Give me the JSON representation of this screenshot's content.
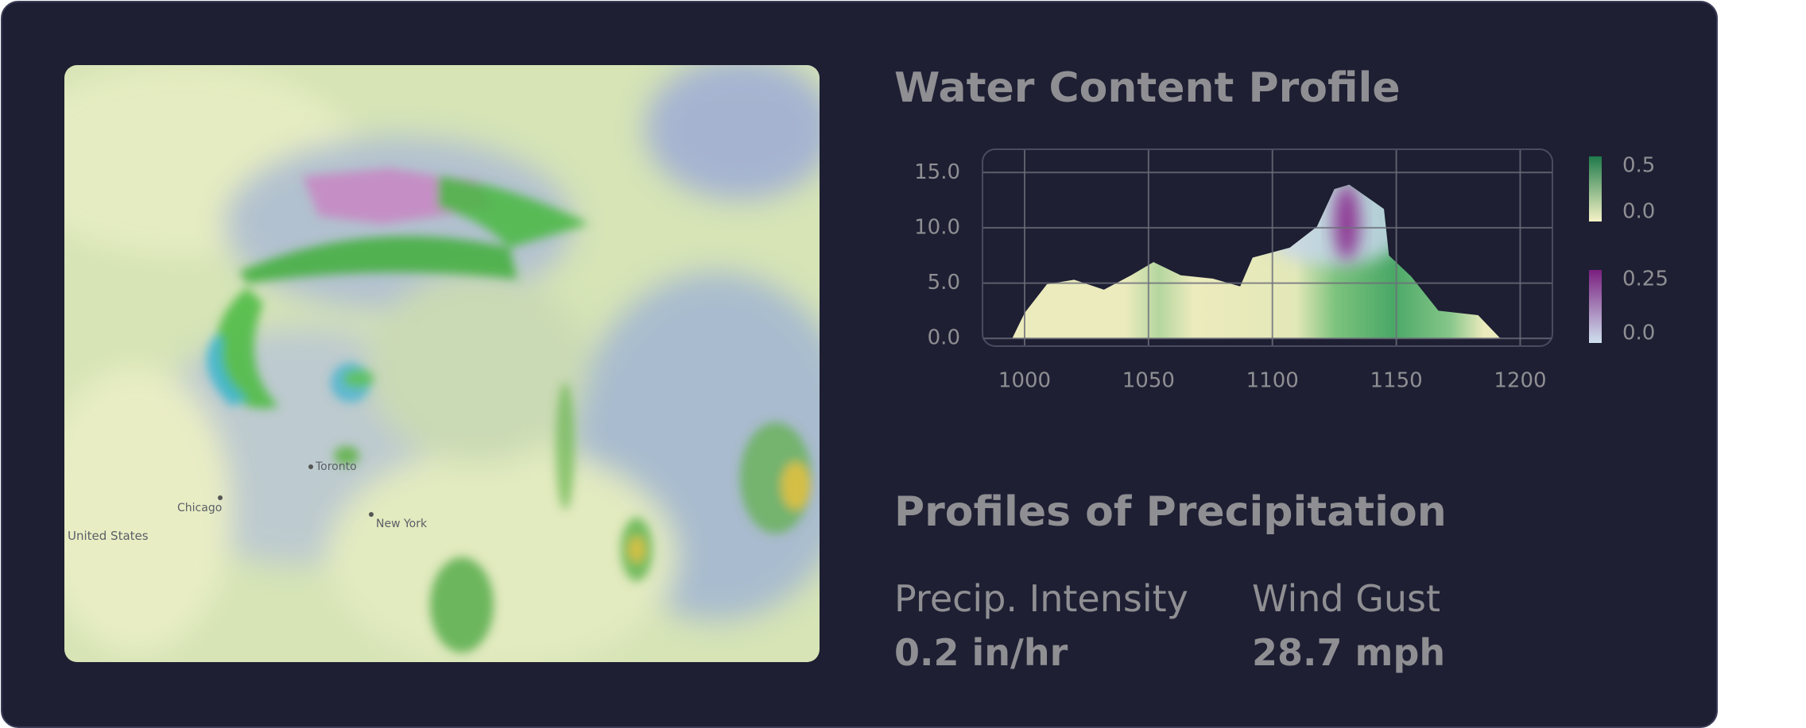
{
  "map": {
    "labels": [
      "Toronto",
      "Chicago",
      "New York",
      "United States"
    ]
  },
  "chart_data": {
    "type": "area",
    "title": "Water Content Profile",
    "x": [
      995,
      1000,
      1009,
      1020,
      1032,
      1043,
      1052,
      1063,
      1076,
      1087,
      1092,
      1107,
      1118,
      1125,
      1131,
      1145,
      1147,
      1156,
      1167,
      1183,
      1192
    ],
    "values": [
      0,
      2.3,
      4.9,
      5.3,
      4.4,
      5.7,
      6.9,
      5.7,
      5.4,
      4.7,
      7.3,
      8.2,
      10.1,
      13.5,
      13.9,
      11.7,
      7.5,
      5.6,
      2.5,
      2.1,
      0
    ],
    "xlim": [
      983,
      1213
    ],
    "xticks": [
      1000,
      1050,
      1100,
      1150,
      1200
    ],
    "ylim": [
      -0.7,
      17.1
    ],
    "yticks": [
      {
        "value": 0,
        "label": "0.0"
      },
      {
        "value": 5,
        "label": "5.0"
      },
      {
        "value": 10,
        "label": "10.0"
      },
      {
        "value": 15,
        "label": "15.0"
      }
    ],
    "grid": true,
    "colorbars": [
      {
        "colors": [
          "#f5f3c6",
          "#1f7a4a"
        ],
        "lim": [
          0,
          0.5
        ],
        "ticks": [
          {
            "value": 0,
            "label": "0.0"
          },
          0.5
        ]
      },
      {
        "colors": [
          "#cfe0ee",
          "#7a1f7f"
        ],
        "lim": [
          0,
          0.25
        ],
        "ticks": [
          {
            "value": 0,
            "label": "0.0"
          },
          0.25
        ]
      }
    ]
  },
  "section": {
    "title": "Profiles of Precipitation",
    "stats": [
      {
        "label": "Precip. Intensity",
        "value": "0.2 in/hr"
      },
      {
        "label": "Wind Gust",
        "value": "28.7 mph"
      }
    ]
  }
}
